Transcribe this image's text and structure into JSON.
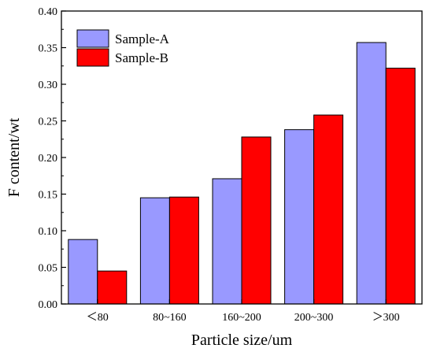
{
  "chart_data": {
    "type": "bar",
    "title": "",
    "xlabel": "Particle size/um",
    "ylabel": "F content/wt",
    "categories": [
      "<80",
      "80~160",
      "160~200",
      "200~300",
      ">300"
    ],
    "category_labels": [
      "＜80",
      "80~160",
      "160~200",
      "200~300",
      "＞300"
    ],
    "series": [
      {
        "name": "Sample-A",
        "values": [
          0.088,
          0.145,
          0.171,
          0.238,
          0.357
        ],
        "color": "#9999ff"
      },
      {
        "name": "Sample-B",
        "values": [
          0.045,
          0.146,
          0.228,
          0.258,
          0.322
        ],
        "color": "#ff0000"
      }
    ],
    "ylim": [
      0,
      0.4
    ],
    "yticks": [
      "0.00",
      "0.05",
      "0.10",
      "0.15",
      "0.20",
      "0.25",
      "0.30",
      "0.35",
      "0.40"
    ],
    "grid": false,
    "legend": "top-left"
  }
}
